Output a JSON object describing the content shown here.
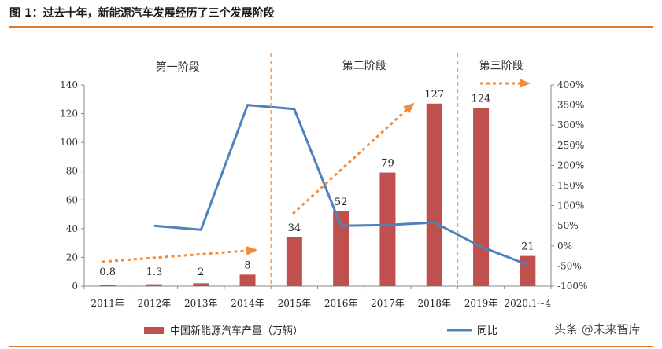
{
  "figure_title": "图 1：过去十年，新能源汽车发展经历了三个发展阶段",
  "watermark": "头条 @未来智库",
  "chart_data": {
    "type": "bar",
    "categories": [
      "2011年",
      "2012年",
      "2013年",
      "2014年",
      "2015年",
      "2016年",
      "2017年",
      "2018年",
      "2019年",
      "2020.1~4"
    ],
    "series": [
      {
        "name": "中国新能源汽车产量（万辆）",
        "type": "bar",
        "axis": "left",
        "color": "#c0504d",
        "values": [
          0.8,
          1.3,
          2,
          8,
          34,
          52,
          79,
          127,
          124,
          21
        ],
        "labels": [
          "0.8",
          "1.3",
          "2",
          "8",
          "34",
          "52",
          "79",
          "127",
          "124",
          "21"
        ]
      },
      {
        "name": "同比",
        "type": "line",
        "axis": "right",
        "color": "#4f81bd",
        "values": [
          null,
          0.5,
          0.4,
          3.5,
          3.4,
          0.5,
          0.52,
          0.58,
          -0.02,
          -0.47
        ]
      }
    ],
    "left_axis": {
      "min": 0,
      "max": 140,
      "ticks": [
        "0",
        "20",
        "40",
        "60",
        "80",
        "100",
        "120",
        "140"
      ]
    },
    "right_axis": {
      "min": -1.0,
      "max": 4.0,
      "ticks": [
        "-100%",
        "-50%",
        "0%",
        "50%",
        "100%",
        "150%",
        "200%",
        "250%",
        "300%",
        "350%",
        "400%"
      ]
    },
    "stages": [
      "第一阶段",
      "第二阶段",
      "第三阶段"
    ],
    "legend_position": "bottom"
  }
}
